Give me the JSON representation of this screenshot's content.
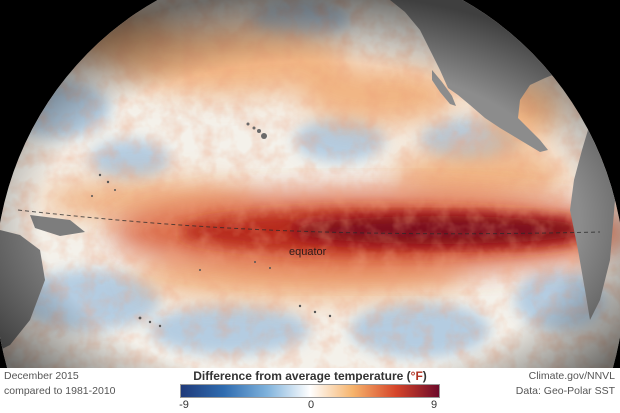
{
  "map": {
    "equator_label": "equator",
    "colors": {
      "space": "#000000",
      "land": "#8a8a8a",
      "strong_warm": "#7a0a1e",
      "warm": "#c0392b",
      "mild_warm": "#f0a060",
      "neutral": "#f5f3ee",
      "cool": "#a9c6e0"
    }
  },
  "caption": {
    "date": "December 2015",
    "baseline": "compared to 1981-2010"
  },
  "legend": {
    "title_prefix": "Difference from average temperature (",
    "title_unit": "°F",
    "title_suffix": ")",
    "min": "-9",
    "mid": "0",
    "max": "9",
    "color_stops": [
      "#1f3a7a",
      "#2f6cb0",
      "#7fb2dc",
      "#ffffff",
      "#f6b36b",
      "#d6452a",
      "#6d0a2a"
    ]
  },
  "credits": {
    "source": "Climate.gov/NNVL",
    "data": "Data: Geo-Polar SST"
  }
}
